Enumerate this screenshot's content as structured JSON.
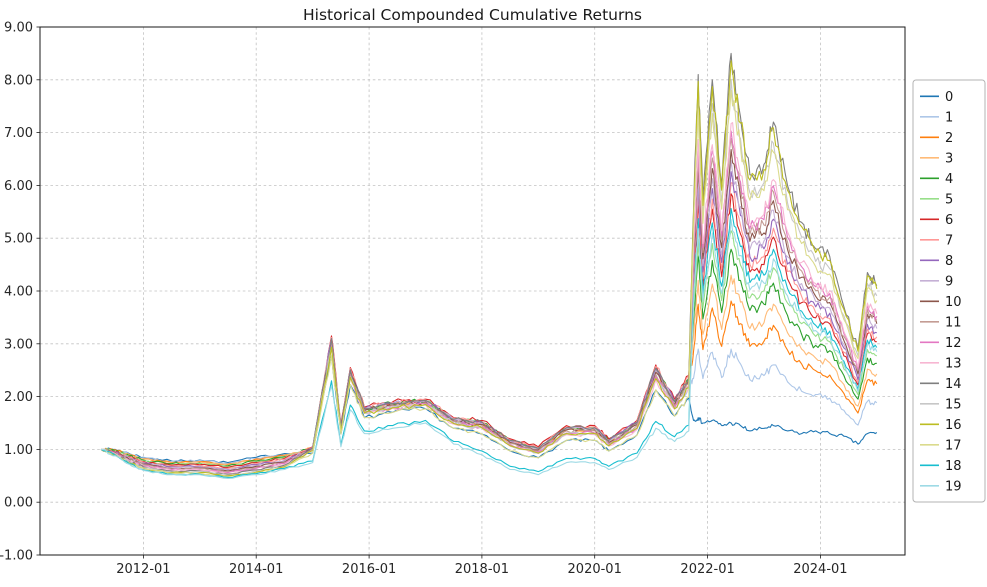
{
  "figure": {
    "title": "Historical Compounded Cumulative Returns",
    "background_color": "#ffffff"
  },
  "chart_data": {
    "type": "line",
    "title": "Historical Compounded Cumulative Returns",
    "xlabel": "",
    "ylabel": "",
    "xlim": [
      "2010-03",
      "2025-07"
    ],
    "ylim": [
      -1,
      9
    ],
    "grid": true,
    "legend_position": "outside-right",
    "x_tick_labels": [
      "2012-01",
      "2014-01",
      "2016-01",
      "2018-01",
      "2020-01",
      "2022-01",
      "2024-01"
    ],
    "y_ticks": [
      {
        "v": -1,
        "label": "-1.00"
      },
      {
        "v": 0,
        "label": "0.00"
      },
      {
        "v": 1,
        "label": "1.00"
      },
      {
        "v": 2,
        "label": "2.00"
      },
      {
        "v": 3,
        "label": "3.00"
      },
      {
        "v": 4,
        "label": "4.00"
      },
      {
        "v": 5,
        "label": "5.00"
      },
      {
        "v": 6,
        "label": "6.00"
      },
      {
        "v": 7,
        "label": "7.00"
      },
      {
        "v": 8,
        "label": "8.00"
      },
      {
        "v": 9,
        "label": "9.00"
      }
    ],
    "style": {
      "grid_color": "#c2c2c2",
      "spine_color": "#1a1a1a",
      "tick_label_color": "#262626",
      "legend_border_color": "#b3b3b3",
      "line_width": 1.1
    },
    "x": [
      "2011-04",
      "2011-07",
      "2011-10",
      "2012-01",
      "2012-07",
      "2013-01",
      "2013-07",
      "2014-01",
      "2014-07",
      "2015-01",
      "2015-05",
      "2015-07",
      "2015-09",
      "2015-12",
      "2016-06",
      "2017-01",
      "2017-07",
      "2018-01",
      "2018-07",
      "2019-01",
      "2019-07",
      "2020-01",
      "2020-04",
      "2020-10",
      "2021-02",
      "2021-06",
      "2021-09",
      "2021-10",
      "2021-11",
      "2021-12",
      "2022-02",
      "2022-04",
      "2022-06",
      "2022-08",
      "2022-10",
      "2023-01",
      "2023-03",
      "2023-06",
      "2023-09",
      "2023-12",
      "2024-03",
      "2024-06",
      "2024-09",
      "2024-11",
      "2025-01"
    ],
    "series": [
      {
        "name": "0",
        "color": "#1f77b4",
        "values": [
          1.0,
          1.0,
          0.92,
          0.85,
          0.78,
          0.8,
          0.75,
          0.85,
          0.92,
          0.93,
          2.77,
          1.29,
          2.23,
          1.6,
          1.7,
          1.77,
          1.4,
          1.29,
          0.97,
          0.84,
          1.17,
          1.17,
          0.97,
          1.27,
          2.12,
          1.63,
          1.98,
          1.55,
          1.6,
          1.5,
          1.55,
          1.45,
          1.5,
          1.45,
          1.35,
          1.4,
          1.45,
          1.35,
          1.3,
          1.35,
          1.3,
          1.25,
          1.1,
          1.3,
          1.32
        ]
      },
      {
        "name": "1",
        "color": "#aec7e8",
        "values": [
          1.0,
          0.99,
          0.91,
          0.84,
          0.77,
          0.79,
          0.73,
          0.83,
          0.9,
          0.99,
          2.95,
          1.37,
          2.38,
          1.7,
          1.8,
          1.86,
          1.5,
          1.42,
          1.08,
          0.94,
          1.31,
          1.31,
          1.08,
          1.41,
          2.35,
          1.78,
          2.18,
          2.34,
          2.9,
          2.34,
          2.84,
          2.36,
          2.9,
          2.62,
          2.32,
          2.4,
          2.6,
          2.28,
          2.1,
          2.04,
          1.97,
          1.74,
          1.46,
          1.91,
          1.88
        ]
      },
      {
        "name": "2",
        "color": "#ff7f0e",
        "values": [
          1.0,
          0.99,
          0.9,
          0.82,
          0.75,
          0.77,
          0.72,
          0.82,
          0.89,
          1.02,
          3.05,
          1.41,
          2.47,
          1.75,
          1.85,
          1.9,
          1.55,
          1.48,
          1.14,
          0.99,
          1.38,
          1.38,
          1.14,
          1.48,
          2.47,
          1.87,
          2.29,
          2.85,
          3.75,
          2.89,
          3.68,
          2.95,
          3.81,
          3.38,
          2.95,
          3.05,
          3.35,
          2.88,
          2.62,
          2.49,
          2.41,
          2.06,
          1.69,
          2.31,
          2.24
        ]
      },
      {
        "name": "3",
        "color": "#ffbb78",
        "values": [
          1.0,
          0.98,
          0.89,
          0.81,
          0.74,
          0.76,
          0.7,
          0.8,
          0.87,
          1.03,
          3.07,
          1.42,
          2.48,
          1.76,
          1.86,
          1.91,
          1.56,
          1.5,
          1.15,
          1.01,
          1.39,
          1.39,
          1.15,
          1.49,
          2.5,
          1.88,
          2.31,
          3.13,
          4.2,
          3.18,
          4.13,
          3.27,
          4.3,
          3.79,
          3.29,
          3.4,
          3.75,
          3.21,
          2.9,
          2.73,
          2.64,
          2.23,
          1.82,
          2.52,
          2.43
        ]
      },
      {
        "name": "4",
        "color": "#2ca02c",
        "values": [
          1.0,
          0.97,
          0.88,
          0.8,
          0.73,
          0.74,
          0.69,
          0.78,
          0.86,
          1.03,
          3.09,
          1.43,
          2.5,
          1.77,
          1.87,
          1.92,
          1.57,
          1.51,
          1.17,
          1.02,
          1.41,
          1.41,
          1.17,
          1.51,
          2.53,
          1.9,
          2.34,
          3.41,
          4.66,
          3.47,
          4.58,
          3.59,
          4.79,
          4.2,
          3.63,
          3.75,
          4.15,
          3.54,
          3.18,
          2.97,
          2.87,
          2.4,
          1.95,
          2.73,
          2.63
        ]
      },
      {
        "name": "5",
        "color": "#98df8a",
        "values": [
          1.0,
          0.97,
          0.87,
          0.78,
          0.71,
          0.73,
          0.67,
          0.76,
          0.84,
          1.03,
          3.09,
          1.42,
          2.5,
          1.77,
          1.87,
          1.92,
          1.57,
          1.51,
          1.16,
          1.02,
          1.41,
          1.41,
          1.16,
          1.51,
          2.52,
          1.9,
          2.33,
          3.6,
          4.98,
          3.68,
          4.9,
          3.82,
          5.14,
          4.49,
          3.87,
          4.0,
          4.44,
          3.77,
          3.38,
          3.14,
          3.04,
          2.52,
          2.04,
          2.89,
          2.77
        ]
      },
      {
        "name": "6",
        "color": "#d62728",
        "values": [
          1.0,
          0.96,
          0.86,
          0.77,
          0.7,
          0.71,
          0.66,
          0.75,
          0.83,
          1.05,
          3.15,
          1.45,
          2.55,
          1.8,
          1.9,
          1.95,
          1.6,
          1.55,
          1.2,
          1.05,
          1.45,
          1.45,
          1.2,
          1.55,
          2.6,
          1.95,
          2.4,
          4.0,
          5.63,
          4.1,
          5.55,
          4.27,
          5.84,
          5.08,
          4.36,
          4.5,
          5.02,
          4.23,
          3.78,
          3.49,
          3.38,
          2.77,
          2.22,
          3.19,
          3.04
        ]
      },
      {
        "name": "7",
        "color": "#ff9896",
        "values": [
          1.0,
          0.96,
          0.85,
          0.76,
          0.68,
          0.7,
          0.64,
          0.73,
          0.81,
          1.04,
          3.12,
          1.44,
          2.53,
          1.79,
          1.89,
          1.94,
          1.59,
          1.53,
          1.18,
          1.03,
          1.43,
          1.43,
          1.18,
          1.53,
          2.57,
          1.93,
          2.37,
          4.12,
          5.83,
          4.23,
          5.74,
          4.41,
          6.05,
          5.25,
          4.5,
          4.65,
          5.19,
          4.37,
          3.9,
          3.59,
          3.48,
          2.84,
          2.27,
          3.28,
          3.13
        ]
      },
      {
        "name": "8",
        "color": "#9467bd",
        "values": [
          1.0,
          0.95,
          0.84,
          0.74,
          0.67,
          0.68,
          0.62,
          0.71,
          0.79,
          1.03,
          3.09,
          1.43,
          2.5,
          1.77,
          1.87,
          1.92,
          1.57,
          1.51,
          1.17,
          1.02,
          1.41,
          1.41,
          1.17,
          1.51,
          2.53,
          1.9,
          2.34,
          4.24,
          6.02,
          4.36,
          5.94,
          4.54,
          6.26,
          5.43,
          4.65,
          4.8,
          5.36,
          4.51,
          4.02,
          3.7,
          3.58,
          2.92,
          2.32,
          3.37,
          3.21
        ]
      },
      {
        "name": "9",
        "color": "#c5b0d5",
        "values": [
          1.0,
          0.94,
          0.83,
          0.73,
          0.66,
          0.67,
          0.61,
          0.69,
          0.78,
          1.02,
          3.06,
          1.41,
          2.48,
          1.76,
          1.86,
          1.91,
          1.56,
          1.49,
          1.15,
          1.0,
          1.39,
          1.39,
          1.15,
          1.49,
          2.49,
          1.88,
          2.31,
          4.35,
          6.22,
          4.48,
          6.13,
          4.68,
          6.47,
          5.6,
          4.79,
          4.95,
          5.53,
          4.65,
          4.14,
          3.8,
          3.68,
          2.99,
          2.38,
          3.47,
          3.29
        ]
      },
      {
        "name": "10",
        "color": "#8c564b",
        "values": [
          1.0,
          0.94,
          0.81,
          0.72,
          0.64,
          0.65,
          0.59,
          0.68,
          0.76,
          1.01,
          3.04,
          1.4,
          2.45,
          1.74,
          1.84,
          1.9,
          1.54,
          1.47,
          1.13,
          0.99,
          1.37,
          1.37,
          1.13,
          1.47,
          2.46,
          1.85,
          2.28,
          4.47,
          6.41,
          4.61,
          6.32,
          4.82,
          6.68,
          5.78,
          4.94,
          5.1,
          5.71,
          4.79,
          4.26,
          3.9,
          3.78,
          3.06,
          2.43,
          3.56,
          3.38
        ]
      },
      {
        "name": "11",
        "color": "#c49c94",
        "values": [
          1.0,
          0.93,
          0.8,
          0.71,
          0.63,
          0.64,
          0.58,
          0.66,
          0.75,
          1.01,
          3.01,
          1.39,
          2.43,
          1.73,
          1.83,
          1.88,
          1.53,
          1.45,
          1.11,
          0.97,
          1.35,
          1.35,
          1.11,
          1.45,
          2.42,
          1.83,
          2.24,
          4.59,
          6.61,
          4.73,
          6.52,
          4.95,
          6.89,
          5.95,
          5.08,
          5.25,
          5.88,
          4.93,
          4.38,
          4.01,
          3.88,
          3.14,
          2.49,
          3.65,
          3.46
        ]
      },
      {
        "name": "12",
        "color": "#e377c2",
        "values": [
          1.0,
          0.92,
          0.79,
          0.69,
          0.62,
          0.62,
          0.56,
          0.64,
          0.73,
          0.99,
          2.97,
          1.37,
          2.39,
          1.7,
          1.8,
          1.86,
          1.5,
          1.42,
          1.09,
          0.95,
          1.31,
          1.31,
          1.09,
          1.41,
          2.37,
          1.79,
          2.2,
          4.67,
          6.74,
          4.82,
          6.65,
          5.04,
          7.03,
          6.07,
          5.18,
          5.35,
          5.99,
          5.02,
          4.46,
          4.08,
          3.95,
          3.19,
          2.52,
          3.71,
          3.52
        ]
      },
      {
        "name": "13",
        "color": "#f7b6d2",
        "values": [
          1.0,
          0.92,
          0.78,
          0.68,
          0.6,
          0.61,
          0.54,
          0.62,
          0.71,
          0.98,
          2.93,
          1.36,
          2.36,
          1.68,
          1.78,
          1.84,
          1.48,
          1.4,
          1.06,
          0.92,
          1.28,
          1.28,
          1.06,
          1.38,
          2.32,
          1.76,
          2.15,
          4.75,
          6.87,
          4.9,
          6.77,
          5.14,
          7.17,
          6.19,
          5.28,
          5.45,
          6.11,
          5.12,
          4.54,
          4.14,
          4.01,
          3.23,
          2.56,
          3.77,
          3.57
        ]
      },
      {
        "name": "14",
        "color": "#7f7f7f",
        "values": [
          1.0,
          0.91,
          0.77,
          0.67,
          0.59,
          0.59,
          0.53,
          0.61,
          0.7,
          1.03,
          3.1,
          1.43,
          2.51,
          1.77,
          1.87,
          1.93,
          1.57,
          1.52,
          1.17,
          1.02,
          1.41,
          1.41,
          1.17,
          1.51,
          2.54,
          1.91,
          2.34,
          5.5,
          8.1,
          5.7,
          8.0,
          6.0,
          8.5,
          7.3,
          6.2,
          6.4,
          7.2,
          6.0,
          5.3,
          4.8,
          4.65,
          3.7,
          2.9,
          4.35,
          4.1
        ]
      },
      {
        "name": "15",
        "color": "#c7c7c7",
        "values": [
          1.0,
          0.91,
          0.76,
          0.65,
          0.57,
          0.58,
          0.51,
          0.59,
          0.68,
          0.98,
          2.94,
          1.36,
          2.38,
          1.69,
          1.79,
          1.85,
          1.49,
          1.41,
          1.07,
          0.93,
          1.3,
          1.3,
          1.07,
          1.4,
          2.34,
          1.78,
          2.17,
          5.22,
          7.65,
          5.41,
          7.55,
          5.68,
          8.01,
          6.89,
          5.86,
          6.05,
          6.8,
          5.67,
          5.02,
          4.56,
          4.42,
          3.53,
          2.77,
          4.14,
          3.91
        ]
      },
      {
        "name": "16",
        "color": "#bcbd22",
        "values": [
          1.0,
          0.9,
          0.75,
          0.64,
          0.56,
          0.56,
          0.5,
          0.57,
          0.67,
          0.98,
          2.94,
          1.36,
          2.37,
          1.69,
          1.79,
          1.85,
          1.49,
          1.41,
          1.07,
          0.93,
          1.3,
          1.3,
          1.07,
          1.4,
          2.34,
          1.77,
          2.17,
          5.42,
          7.97,
          5.62,
          7.87,
          5.91,
          8.36,
          7.18,
          6.1,
          6.3,
          7.09,
          5.91,
          5.22,
          4.73,
          4.58,
          3.65,
          2.86,
          4.29,
          4.04
        ]
      },
      {
        "name": "17",
        "color": "#dbdb8d",
        "values": [
          1.0,
          0.89,
          0.74,
          0.63,
          0.55,
          0.55,
          0.48,
          0.55,
          0.65,
          0.93,
          2.77,
          1.29,
          2.23,
          1.6,
          1.7,
          1.77,
          1.4,
          1.29,
          0.97,
          0.84,
          1.17,
          1.17,
          0.97,
          1.27,
          2.13,
          1.63,
          1.99,
          5.11,
          7.45,
          5.28,
          7.36,
          5.55,
          7.8,
          6.72,
          5.72,
          5.9,
          6.63,
          5.54,
          4.9,
          4.46,
          4.32,
          3.46,
          2.72,
          4.05,
          3.82
        ]
      },
      {
        "name": "18",
        "color": "#17becf",
        "values": [
          1.0,
          0.89,
          0.73,
          0.61,
          0.53,
          0.53,
          0.47,
          0.54,
          0.64,
          0.78,
          2.3,
          1.09,
          1.84,
          1.35,
          1.45,
          1.55,
          1.15,
          0.97,
          0.68,
          0.58,
          0.83,
          0.83,
          0.68,
          0.93,
          1.53,
          1.24,
          1.46,
          3.84,
          5.37,
          3.94,
          5.29,
          4.09,
          5.56,
          4.84,
          4.16,
          4.3,
          4.79,
          4.05,
          3.62,
          3.35,
          3.24,
          2.67,
          2.14,
          3.07,
          2.93
        ]
      },
      {
        "name": "19",
        "color": "#9edae5",
        "values": [
          1.0,
          0.88,
          0.72,
          0.6,
          0.52,
          0.52,
          0.45,
          0.52,
          0.62,
          0.75,
          2.2,
          1.05,
          1.75,
          1.3,
          1.4,
          1.5,
          1.1,
          0.9,
          0.62,
          0.52,
          0.75,
          0.75,
          0.62,
          0.85,
          1.4,
          1.15,
          1.35,
          3.72,
          5.18,
          3.81,
          5.1,
          3.95,
          5.35,
          4.67,
          4.02,
          4.15,
          4.61,
          3.91,
          3.5,
          3.25,
          3.14,
          2.6,
          2.09,
          2.98,
          2.85
        ]
      }
    ]
  }
}
